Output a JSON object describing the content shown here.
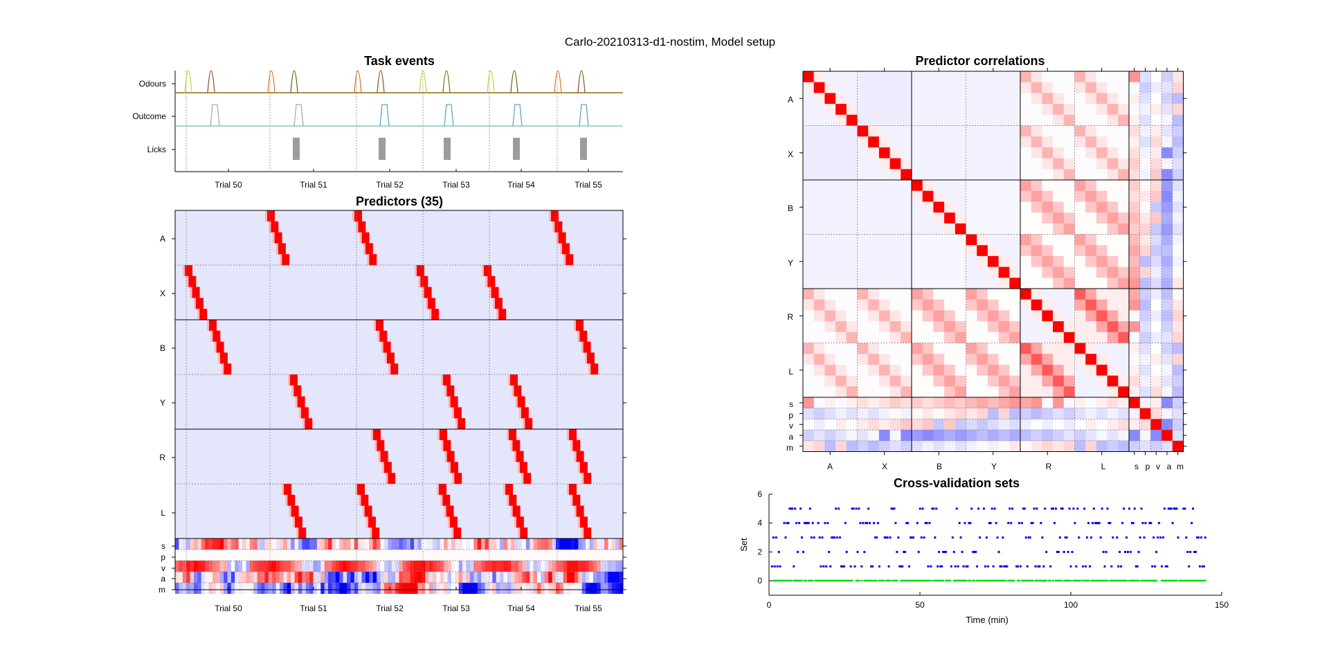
{
  "figure": {
    "title": "Carlo-20210313-d1-nostim, Model setup"
  },
  "colors": {
    "predictor_bg": "#e4e6fb",
    "high": "#ff0000",
    "low": "#0000ff",
    "cv_train": "#0000ff",
    "cv_test": "#00e000",
    "odour_trace": "#8a6a10",
    "outcome_trace": "#7fc6cf",
    "lick_color": "#666666"
  },
  "chart_data": [
    {
      "type": "line",
      "title": "Task events",
      "series": [
        {
          "name": "Odours"
        },
        {
          "name": "Outcome"
        },
        {
          "name": "Licks"
        }
      ],
      "x_tick_labels": [
        "Trial 50",
        "Trial 51",
        "Trial 52",
        "Trial 53",
        "Trial 54",
        "Trial 55"
      ]
    },
    {
      "type": "heatmap",
      "title": "Predictors (35)",
      "row_groups": [
        "A",
        "X",
        "B",
        "Y",
        "R",
        "L",
        "s",
        "p",
        "v",
        "a",
        "m"
      ],
      "x_tick_labels": [
        "Trial 50",
        "Trial 51",
        "Trial 52",
        "Trial 53",
        "Trial 54",
        "Trial 55"
      ]
    },
    {
      "type": "heatmap",
      "title": "Predictor correlations",
      "row_groups": [
        "A",
        "X",
        "B",
        "Y",
        "R",
        "L",
        "s",
        "p",
        "v",
        "a",
        "m"
      ],
      "col_groups": [
        "A",
        "X",
        "B",
        "Y",
        "R",
        "L",
        "s",
        "p",
        "v",
        "a",
        "m"
      ]
    },
    {
      "type": "scatter",
      "title": "Cross-validation sets",
      "xlabel": "Time (min)",
      "ylabel": "Set",
      "xlim": [
        0,
        150
      ],
      "ylim": [
        -1,
        6
      ],
      "x_ticks": [
        0,
        50,
        100,
        150
      ],
      "y_ticks": [
        0,
        2,
        4,
        6
      ],
      "sets": [
        0,
        1,
        2,
        3,
        4,
        5
      ]
    }
  ]
}
